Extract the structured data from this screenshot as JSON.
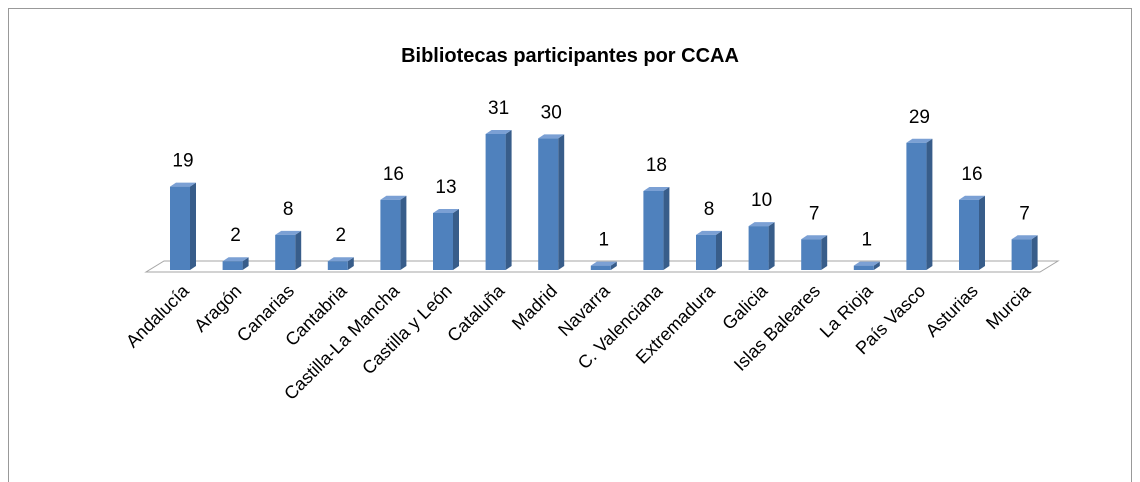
{
  "chart_data": {
    "type": "bar3d",
    "title": "Bibliotecas participantes por CCAA",
    "categories": [
      "Andalucía",
      "Aragón",
      "Canarias",
      "Cantabria",
      "Castilla-La Mancha",
      "Castilla y León",
      "Cataluña",
      "Madrid",
      "Navarra",
      "C. Valenciana",
      "Extremadura",
      "Galicia",
      "Islas Baleares",
      "La Rioja",
      "País Vasco",
      "Asturias",
      "Murcia"
    ],
    "values": [
      19,
      2,
      8,
      2,
      16,
      13,
      31,
      30,
      1,
      18,
      8,
      10,
      7,
      1,
      29,
      16,
      7
    ],
    "color": "#4f81bd"
  }
}
